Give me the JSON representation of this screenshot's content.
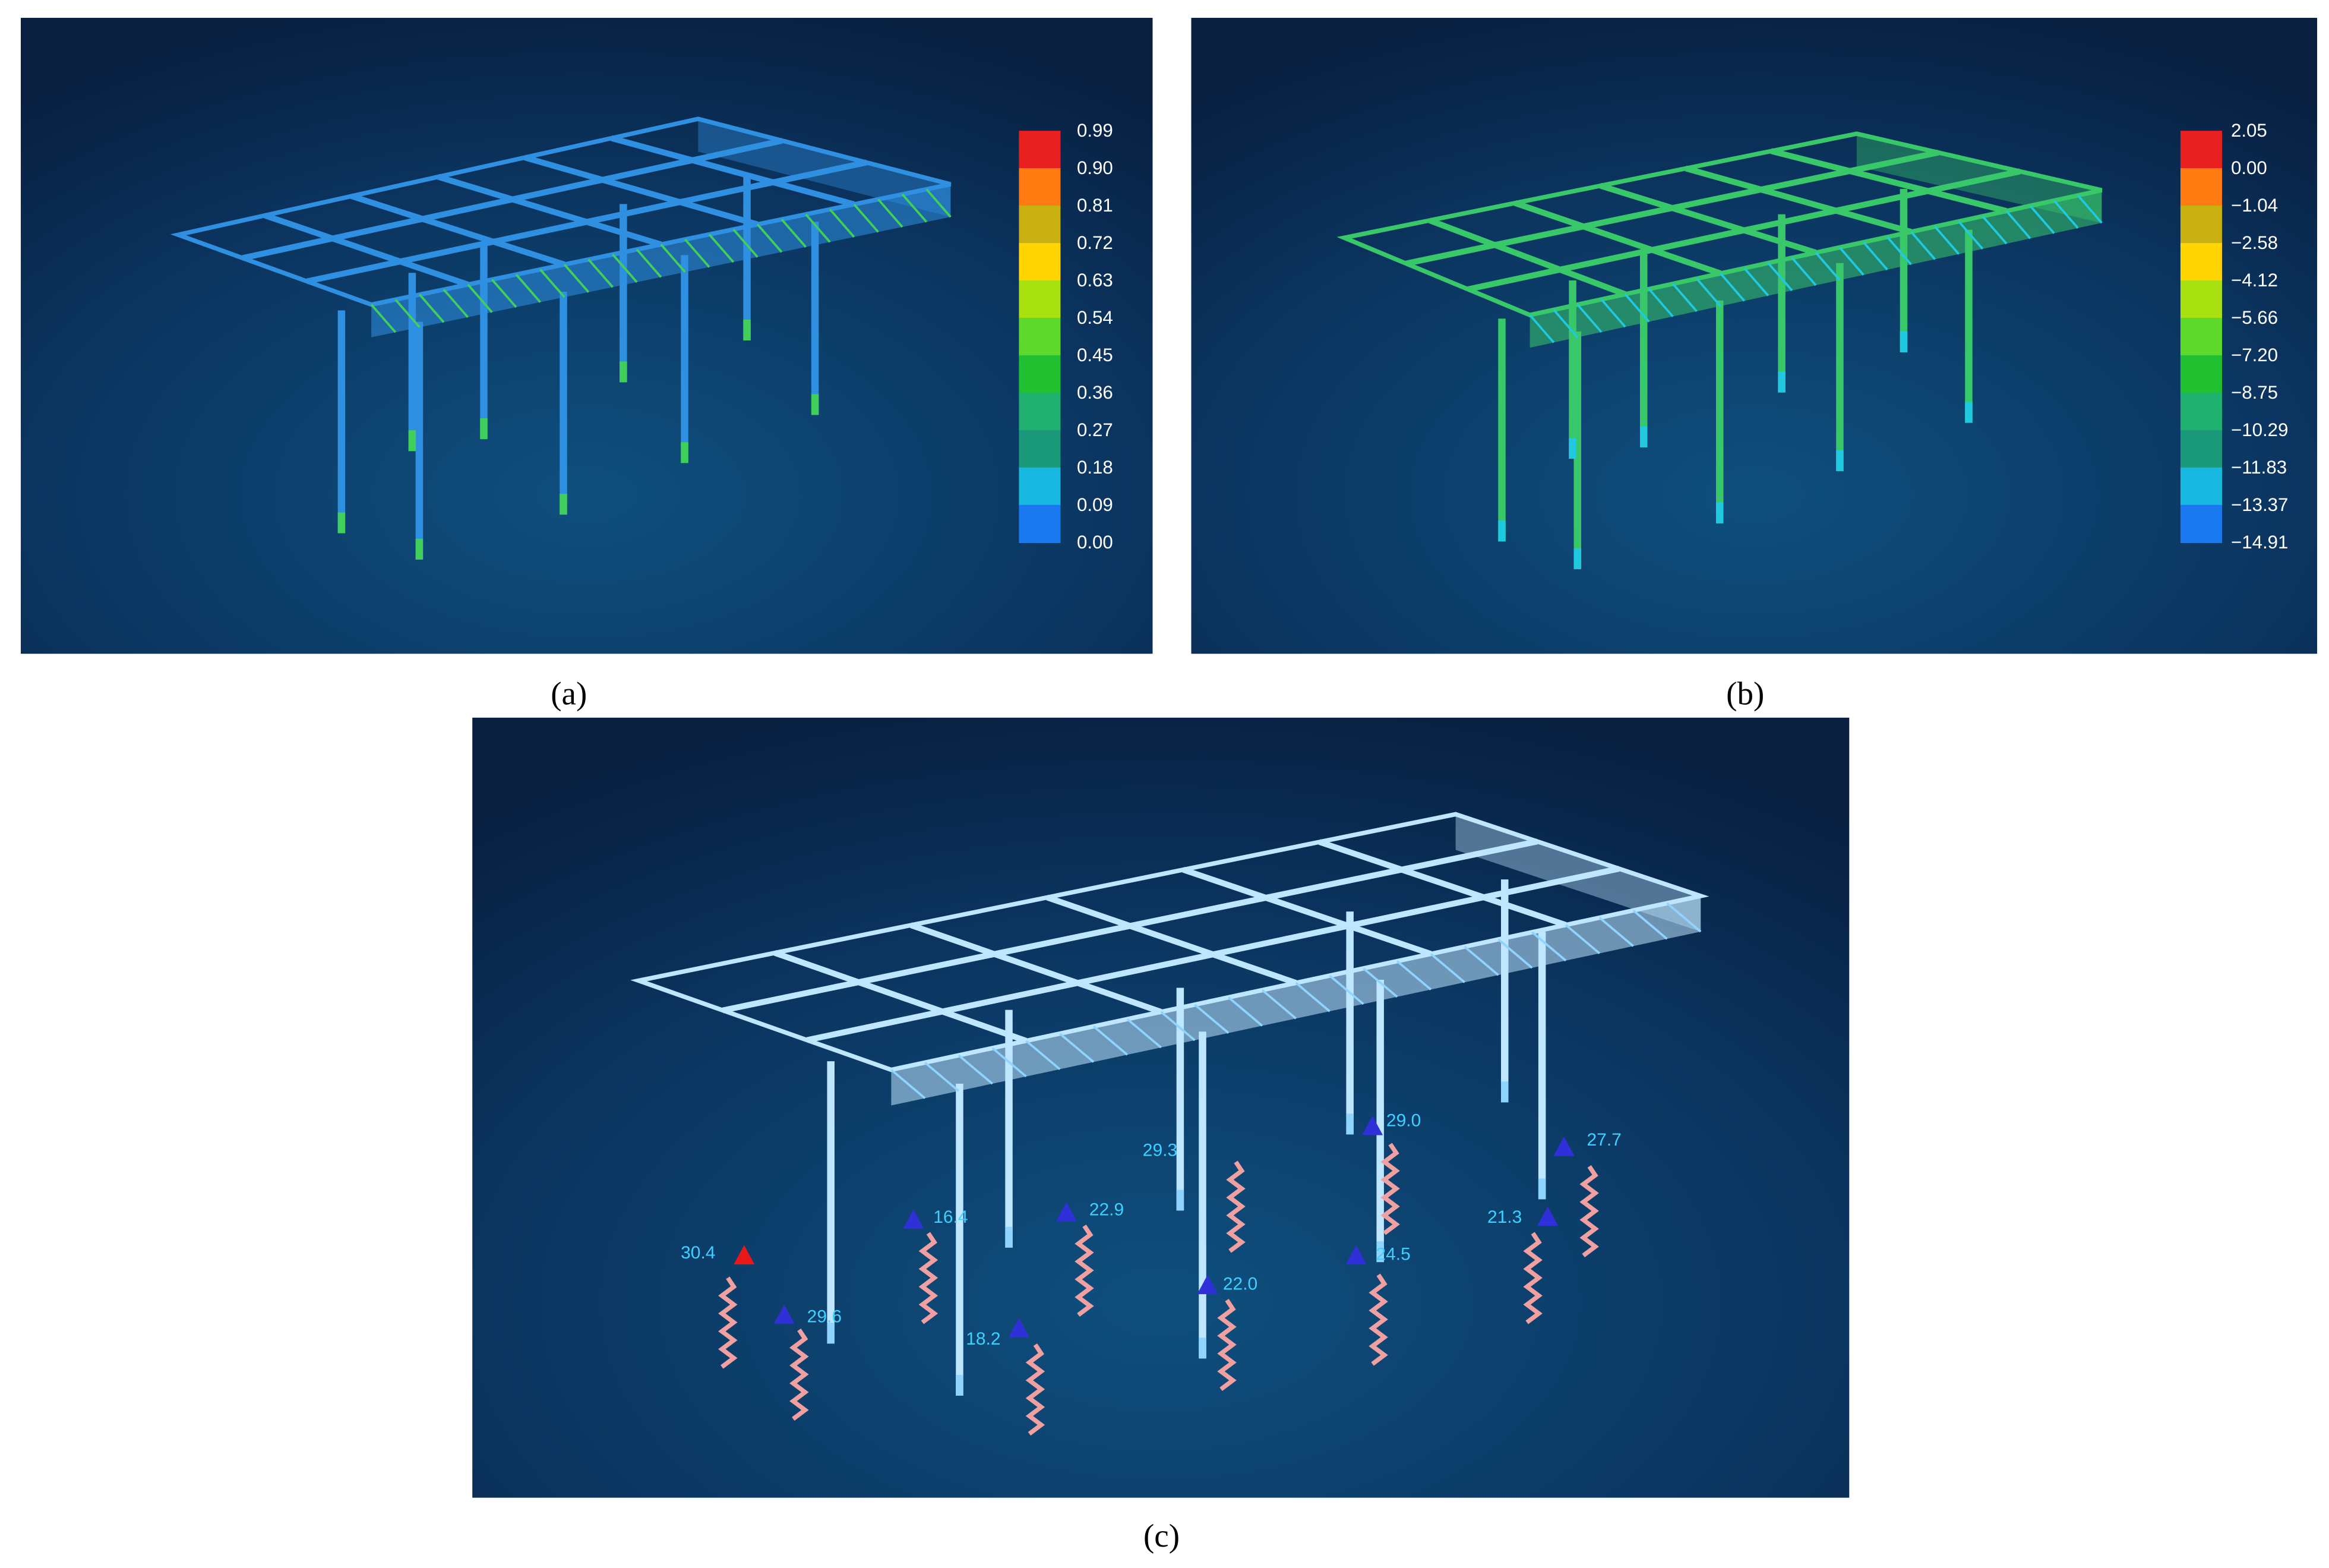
{
  "panels": [
    {
      "label": "(a)",
      "legend": [
        "0.99",
        "0.90",
        "0.81",
        "0.72",
        "0.63",
        "0.54",
        "0.45",
        "0.36",
        "0.27",
        "0.18",
        "0.09",
        "0.00"
      ]
    },
    {
      "label": "(b)",
      "legend": [
        "2.05",
        "0.00",
        "−1.04",
        "−2.58",
        "−4.12",
        "−5.66",
        "−7.20",
        "−8.75",
        "−10.29",
        "−11.83",
        "−13.37",
        "−14.91"
      ]
    },
    {
      "label": "(c)",
      "sensors": [
        "30.4",
        "29.6",
        "16.4",
        "22.9",
        "18.2",
        "29.3",
        "22.0",
        "29.0",
        "24.5",
        "27.7",
        "21.3"
      ]
    }
  ]
}
